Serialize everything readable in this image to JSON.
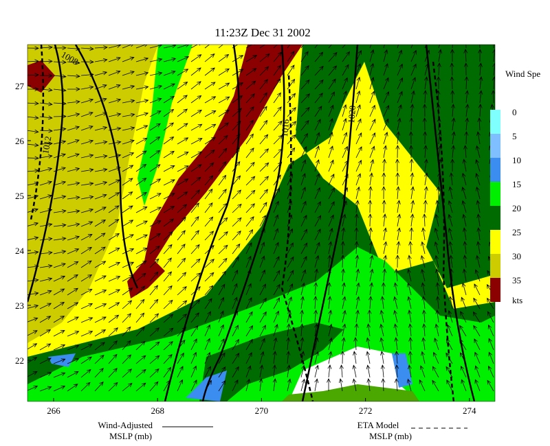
{
  "map": {
    "title": "11:23Z Dec 31 2002",
    "x_ticks": [
      266,
      268,
      270,
      272,
      274
    ],
    "y_ticks": [
      22,
      23,
      24,
      25,
      26,
      27
    ],
    "contour_labels": [
      "1008",
      "1012",
      "1016",
      "1020"
    ],
    "legend": {
      "title": "Wind Spe",
      "levels": [
        {
          "label": "0",
          "color": "#80ffff"
        },
        {
          "label": "5",
          "color": "#80bfff"
        },
        {
          "label": "10",
          "color": "#3b8ef0"
        },
        {
          "label": "15",
          "color": "#00ee00"
        },
        {
          "label": "20",
          "color": "#006b00"
        },
        {
          "label": "25",
          "color": "#ffff00"
        },
        {
          "label": "30",
          "color": "#cccc00"
        },
        {
          "label": "35",
          "color": "#8b0000"
        }
      ],
      "unit": "kts"
    },
    "footer": {
      "left_line1": "Wind-Adjusted",
      "left_line2": "MSLP (mb)",
      "right_line1": "ETA Model",
      "right_line2": "MSLP (mb)"
    }
  }
}
